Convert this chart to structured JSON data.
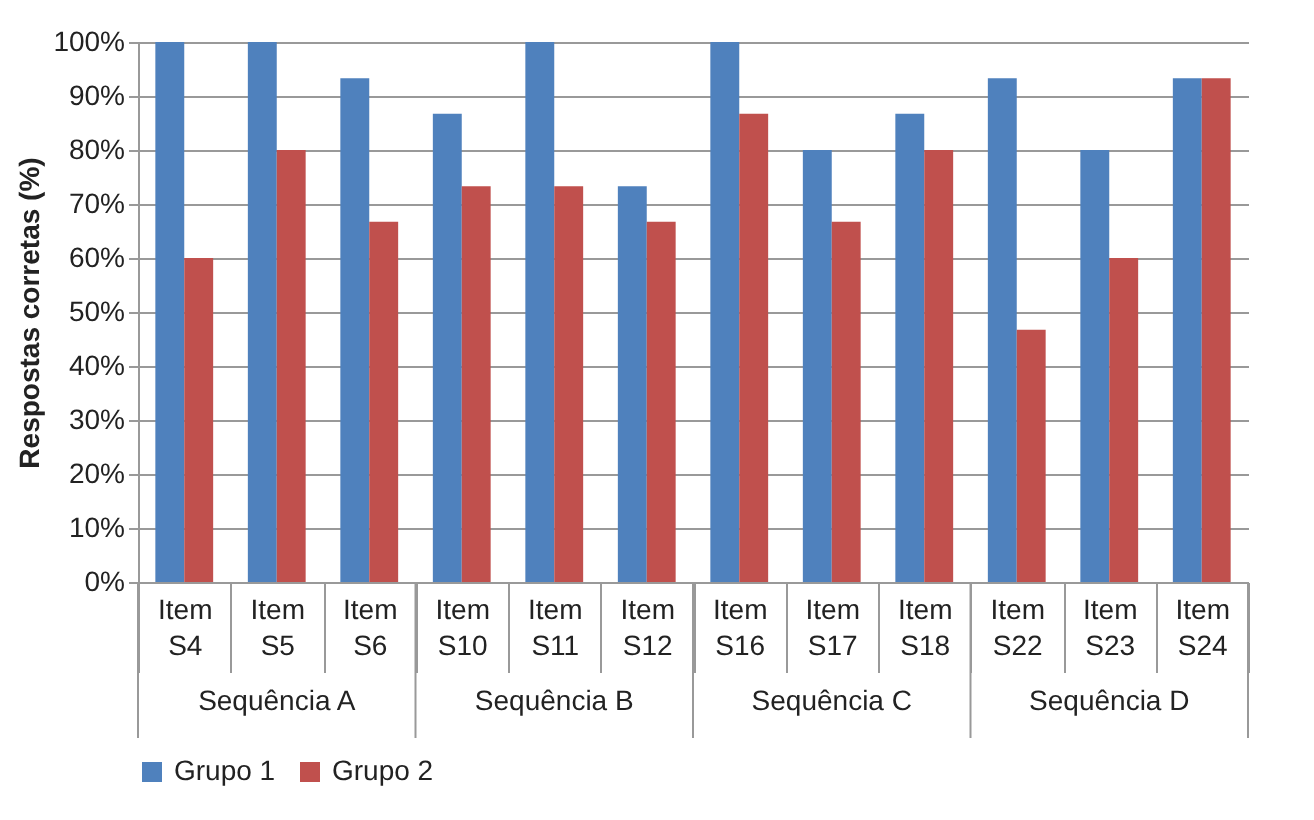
{
  "chart_data": {
    "type": "bar",
    "ylabel": "Respostas corretas (%)",
    "categories": [
      "Item S4",
      "Item S5",
      "Item S6",
      "Item S10",
      "Item S11",
      "Item S12",
      "Item S16",
      "Item S17",
      "Item S18",
      "Item S22",
      "Item S23",
      "Item S24"
    ],
    "series": [
      {
        "name": "Grupo 1",
        "color": "#4f81bd",
        "values": [
          100,
          100,
          93.3,
          86.7,
          100,
          73.3,
          100,
          80,
          86.7,
          93.3,
          80,
          93.3
        ]
      },
      {
        "name": "Grupo 2",
        "color": "#c0504d",
        "values": [
          60,
          80,
          66.7,
          73.3,
          73.3,
          66.7,
          86.7,
          66.7,
          80,
          46.7,
          60,
          93.3
        ]
      }
    ],
    "annotations": [
      "Sequência A",
      "Sequência B",
      "Sequência C",
      "Sequência D"
    ],
    "ylim": [
      0,
      100
    ],
    "yticks": [
      {
        "value": 0,
        "label": "0%"
      },
      {
        "value": 10,
        "label": "10%"
      },
      {
        "value": 20,
        "label": "20%"
      },
      {
        "value": 30,
        "label": "30%"
      },
      {
        "value": 40,
        "label": "40%"
      },
      {
        "value": 50,
        "label": "50%"
      },
      {
        "value": 60,
        "label": "60%"
      },
      {
        "value": 70,
        "label": "70%"
      },
      {
        "value": 80,
        "label": "80%"
      },
      {
        "value": 90,
        "label": "90%"
      },
      {
        "value": 100,
        "label": "100%"
      }
    ],
    "grid": "y",
    "legend": "bottom"
  }
}
